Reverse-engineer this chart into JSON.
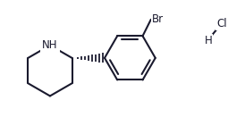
{
  "background_color": "#ffffff",
  "line_color": "#1a1a2e",
  "line_width": 1.5,
  "font_size_labels": 8.5,
  "font_size_hcl": 8.5,
  "text_color": "#1a1a2e",
  "nh_label": "NH",
  "br_label": "Br",
  "hcl_h": "H",
  "hcl_cl": "Cl",
  "figsize": [
    2.74,
    1.5
  ],
  "dpi": 100
}
